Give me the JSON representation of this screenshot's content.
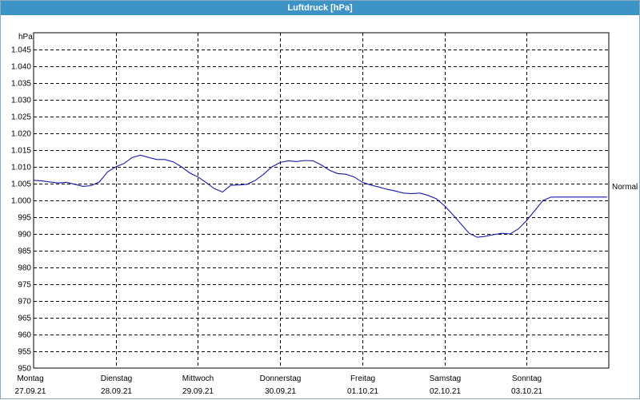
{
  "window": {
    "title": "Luftdruck [hPa]"
  },
  "chart_data": {
    "type": "line",
    "title": "Luftdruck [hPa]",
    "ylabel": "hPa",
    "xlabel": "",
    "ylim": [
      950,
      1050
    ],
    "xlim": [
      0,
      7
    ],
    "y_ticks": [
      "950",
      "955",
      "960",
      "965",
      "970",
      "975",
      "980",
      "985",
      "990",
      "995",
      "1.000",
      "1.005",
      "1.010",
      "1.015",
      "1.020",
      "1.025",
      "1.030",
      "1.035",
      "1.040",
      "1.045"
    ],
    "y_tick_values": [
      950,
      955,
      960,
      965,
      970,
      975,
      980,
      985,
      990,
      995,
      1000,
      1005,
      1010,
      1015,
      1020,
      1025,
      1030,
      1035,
      1040,
      1045
    ],
    "x_ticks": [
      {
        "day": "Montag",
        "date": "27.09.21"
      },
      {
        "day": "Dienstag",
        "date": "28.09.21"
      },
      {
        "day": "Mittwoch",
        "date": "29.09.21"
      },
      {
        "day": "Donnerstag",
        "date": "30.09.21"
      },
      {
        "day": "Freitag",
        "date": "01.10.21"
      },
      {
        "day": "Samstag",
        "date": "02.10.21"
      },
      {
        "day": "Sonntag",
        "date": "03.10.21"
      }
    ],
    "grid": true,
    "reference": {
      "label": "Normal",
      "value": 1004.2
    },
    "series": [
      {
        "color": "#1a1aa6",
        "x": [
          0.0,
          0.1,
          0.2,
          0.3,
          0.4,
          0.5,
          0.6,
          0.7,
          0.8,
          0.9,
          1.0,
          1.1,
          1.2,
          1.3,
          1.4,
          1.5,
          1.6,
          1.7,
          1.8,
          1.9,
          2.0,
          2.1,
          2.2,
          2.3,
          2.4,
          2.5,
          2.6,
          2.7,
          2.8,
          2.9,
          3.0,
          3.1,
          3.2,
          3.3,
          3.4,
          3.5,
          3.6,
          3.7,
          3.8,
          3.9,
          4.0,
          4.1,
          4.2,
          4.3,
          4.4,
          4.5,
          4.6,
          4.7,
          4.8,
          4.9,
          5.0,
          5.1,
          5.2,
          5.3,
          5.4,
          5.5,
          5.6,
          5.7,
          5.8,
          5.9,
          6.0,
          6.1,
          6.2,
          6.3,
          6.4,
          6.5,
          6.6,
          6.7,
          6.8,
          6.9,
          6.98
        ],
        "y": [
          1006.0,
          1005.8,
          1005.5,
          1005.2,
          1005.4,
          1004.8,
          1004.2,
          1004.4,
          1005.5,
          1008.5,
          1010.0,
          1011.0,
          1012.8,
          1013.5,
          1012.8,
          1012.2,
          1012.2,
          1011.5,
          1010.0,
          1008.2,
          1007.0,
          1005.3,
          1003.5,
          1002.5,
          1004.5,
          1004.6,
          1004.8,
          1006.0,
          1007.8,
          1010.0,
          1011.3,
          1011.8,
          1011.6,
          1011.9,
          1011.8,
          1010.6,
          1009.0,
          1008.0,
          1007.8,
          1007.0,
          1005.4,
          1004.6,
          1004.0,
          1003.3,
          1002.8,
          1002.2,
          1002.0,
          1002.2,
          1001.5,
          1000.5,
          998.4,
          995.8,
          993.0,
          990.2,
          989.0,
          989.3,
          989.8,
          990.2,
          990.0,
          991.5,
          994.0,
          997.0,
          1000.0,
          1001.0,
          1001.0,
          1001.0,
          1001.0,
          1001.0,
          1001.0,
          1001.0,
          1001.0
        ]
      }
    ]
  }
}
